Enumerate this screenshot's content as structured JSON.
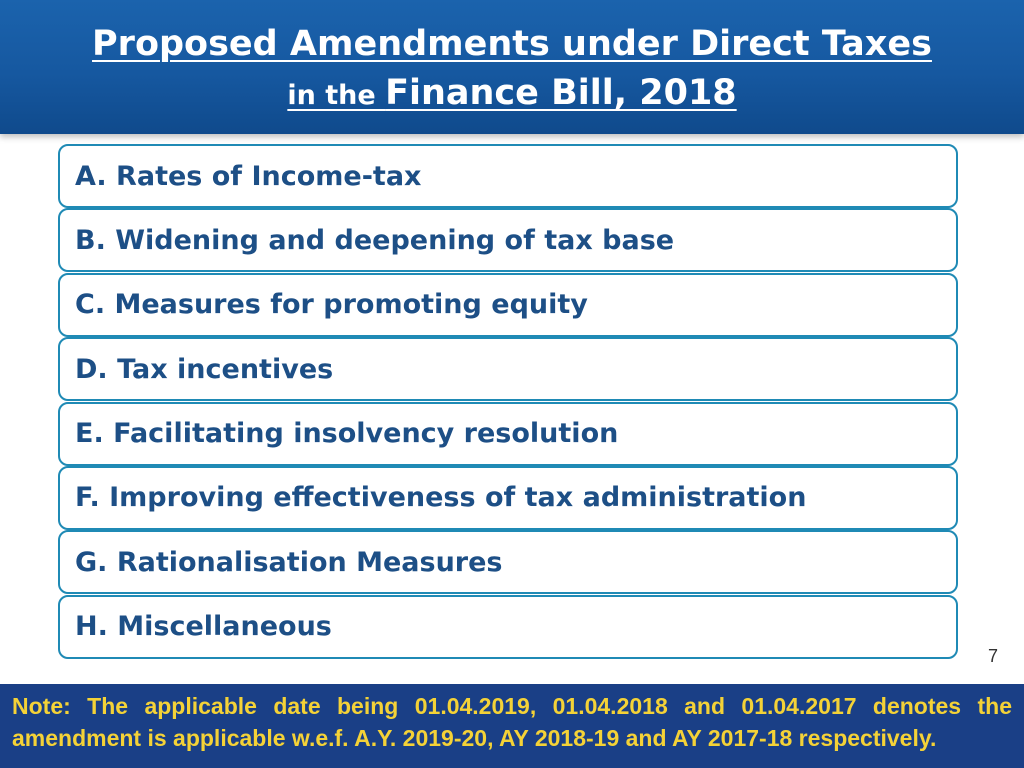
{
  "header": {
    "title_line1": "Proposed Amendments under Direct Taxes ",
    "title_line2_prefix": "in the ",
    "title_line2_main": "Finance Bill, 2018"
  },
  "items": [
    "A. Rates of Income-tax",
    "B. Widening and deepening of tax base",
    "C. Measures for promoting equity",
    "D. Tax incentives",
    "E. Facilitating insolvency resolution",
    "F. Improving effectiveness of tax administration",
    "G. Rationalisation Measures",
    "H. Miscellaneous"
  ],
  "page_number": "7",
  "note": "Note: The applicable date being 01.04.2019, 01.04.2018 and 01.04.2017 denotes the amendment is applicable w.e.f. A.Y. 2019-20, AY 2018-19 and AY 2017-18 respectively.",
  "colors": {
    "header_blue": "#1658a0",
    "item_border": "#1f8ab5",
    "item_text": "#1d4f86",
    "note_bg": "#1a3f86",
    "note_text": "#f4d237"
  }
}
